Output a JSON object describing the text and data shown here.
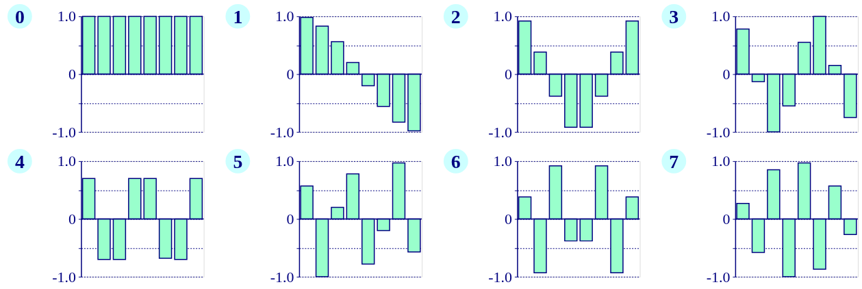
{
  "chart_data": [
    {
      "type": "bar",
      "title": "0",
      "categories": [
        null,
        null,
        null,
        null,
        null,
        null,
        null,
        null
      ],
      "values": [
        1.0,
        1.0,
        1.0,
        1.0,
        1.0,
        1.0,
        1.0,
        1.0
      ],
      "ref_lines": [
        {
          "axis": "y",
          "value": 0,
          "color": "#000080",
          "line_style": "solid"
        }
      ],
      "color": "#99ffcc",
      "ylim": [
        -1,
        1
      ],
      "yticks": [
        {
          "value": 1,
          "label": "1.0"
        },
        {
          "value": 0.5,
          "label": null
        },
        0,
        {
          "value": -0.5,
          "label": null
        },
        {
          "value": -1,
          "label": "-1.0"
        }
      ],
      "grid": "y"
    },
    {
      "type": "bar",
      "title": "1",
      "categories": [
        null,
        null,
        null,
        null,
        null,
        null,
        null,
        null
      ],
      "values": [
        0.98,
        0.83,
        0.56,
        0.2,
        -0.2,
        -0.56,
        -0.83,
        -0.98
      ],
      "ref_lines": [
        {
          "axis": "y",
          "value": 0,
          "color": "#000080",
          "line_style": "solid"
        }
      ],
      "color": "#99ffcc",
      "ylim": [
        -1,
        1
      ],
      "yticks": [
        {
          "value": 1,
          "label": "1.0"
        },
        {
          "value": 0.5,
          "label": null
        },
        0,
        {
          "value": -0.5,
          "label": null
        },
        {
          "value": -1,
          "label": "-1.0"
        }
      ],
      "grid": "y"
    },
    {
      "type": "bar",
      "title": "2",
      "categories": [
        null,
        null,
        null,
        null,
        null,
        null,
        null,
        null
      ],
      "values": [
        0.92,
        0.38,
        -0.38,
        -0.92,
        -0.92,
        -0.38,
        0.38,
        0.92
      ],
      "ref_lines": [
        {
          "axis": "y",
          "value": 0,
          "color": "#000080",
          "line_style": "solid"
        }
      ],
      "color": "#99ffcc",
      "ylim": [
        -1,
        1
      ],
      "yticks": [
        {
          "value": 1,
          "label": "1.0"
        },
        {
          "value": 0.5,
          "label": null
        },
        0,
        {
          "value": -0.5,
          "label": null
        },
        {
          "value": -1,
          "label": "-1.0"
        }
      ],
      "grid": "y"
    },
    {
      "type": "bar",
      "title": "3",
      "categories": [
        null,
        null,
        null,
        null,
        null,
        null,
        null,
        null
      ],
      "values": [
        0.78,
        -0.13,
        -1.0,
        -0.55,
        0.55,
        1.0,
        0.15,
        -0.75
      ],
      "ref_lines": [
        {
          "axis": "y",
          "value": 0,
          "color": "#000080",
          "line_style": "solid"
        }
      ],
      "color": "#99ffcc",
      "ylim": [
        -1,
        1
      ],
      "yticks": [
        {
          "value": 1,
          "label": "1.0"
        },
        {
          "value": 0.5,
          "label": null
        },
        0,
        {
          "value": -0.5,
          "label": null
        },
        {
          "value": -1,
          "label": "-1.0"
        }
      ],
      "grid": "y"
    },
    {
      "type": "bar",
      "title": "4",
      "categories": [
        null,
        null,
        null,
        null,
        null,
        null,
        null,
        null
      ],
      "values": [
        0.7,
        -0.7,
        -0.7,
        0.7,
        0.7,
        -0.68,
        -0.7,
        0.7
      ],
      "ref_lines": [
        {
          "axis": "y",
          "value": 0,
          "color": "#000080",
          "line_style": "solid"
        }
      ],
      "color": "#99ffcc",
      "ylim": [
        -1,
        1
      ],
      "yticks": [
        {
          "value": 1,
          "label": "1.0"
        },
        {
          "value": 0.5,
          "label": null
        },
        0,
        {
          "value": -0.5,
          "label": null
        },
        {
          "value": -1,
          "label": "-1.0"
        }
      ],
      "grid": "y"
    },
    {
      "type": "bar",
      "title": "5",
      "categories": [
        null,
        null,
        null,
        null,
        null,
        null,
        null,
        null
      ],
      "values": [
        0.57,
        -1.0,
        0.2,
        0.78,
        -0.78,
        -0.2,
        0.97,
        -0.57
      ],
      "ref_lines": [
        {
          "axis": "y",
          "value": 0,
          "color": "#000080",
          "line_style": "solid"
        }
      ],
      "color": "#99ffcc",
      "ylim": [
        -1,
        1
      ],
      "yticks": [
        {
          "value": 1,
          "label": "1.0"
        },
        {
          "value": 0.5,
          "label": null
        },
        0,
        {
          "value": -0.5,
          "label": null
        },
        {
          "value": -1,
          "label": "-1.0"
        }
      ],
      "grid": "y"
    },
    {
      "type": "bar",
      "title": "6",
      "categories": [
        null,
        null,
        null,
        null,
        null,
        null,
        null,
        null
      ],
      "values": [
        0.38,
        -0.93,
        0.92,
        -0.38,
        -0.38,
        0.92,
        -0.93,
        0.38
      ],
      "ref_lines": [
        {
          "axis": "y",
          "value": 0,
          "color": "#000080",
          "line_style": "solid"
        }
      ],
      "color": "#99ffcc",
      "ylim": [
        -1,
        1
      ],
      "yticks": [
        {
          "value": 1,
          "label": "1.0"
        },
        {
          "value": 0.5,
          "label": null
        },
        0,
        {
          "value": -0.5,
          "label": null
        },
        {
          "value": -1,
          "label": "-1.0"
        }
      ],
      "grid": "y"
    },
    {
      "type": "bar",
      "title": "7",
      "categories": [
        null,
        null,
        null,
        null,
        null,
        null,
        null,
        null
      ],
      "values": [
        0.27,
        -0.58,
        0.85,
        -1.0,
        0.97,
        -0.87,
        0.57,
        -0.27
      ],
      "ref_lines": [
        {
          "axis": "y",
          "value": 0,
          "color": "#000080",
          "line_style": "solid"
        }
      ],
      "color": "#99ffcc",
      "ylim": [
        -1,
        1
      ],
      "yticks": [
        {
          "value": 1,
          "label": "1.0"
        },
        {
          "value": 0.5,
          "label": null
        },
        0,
        {
          "value": -0.5,
          "label": null
        },
        {
          "value": -1,
          "label": "-1.0"
        }
      ],
      "grid": "y"
    }
  ]
}
